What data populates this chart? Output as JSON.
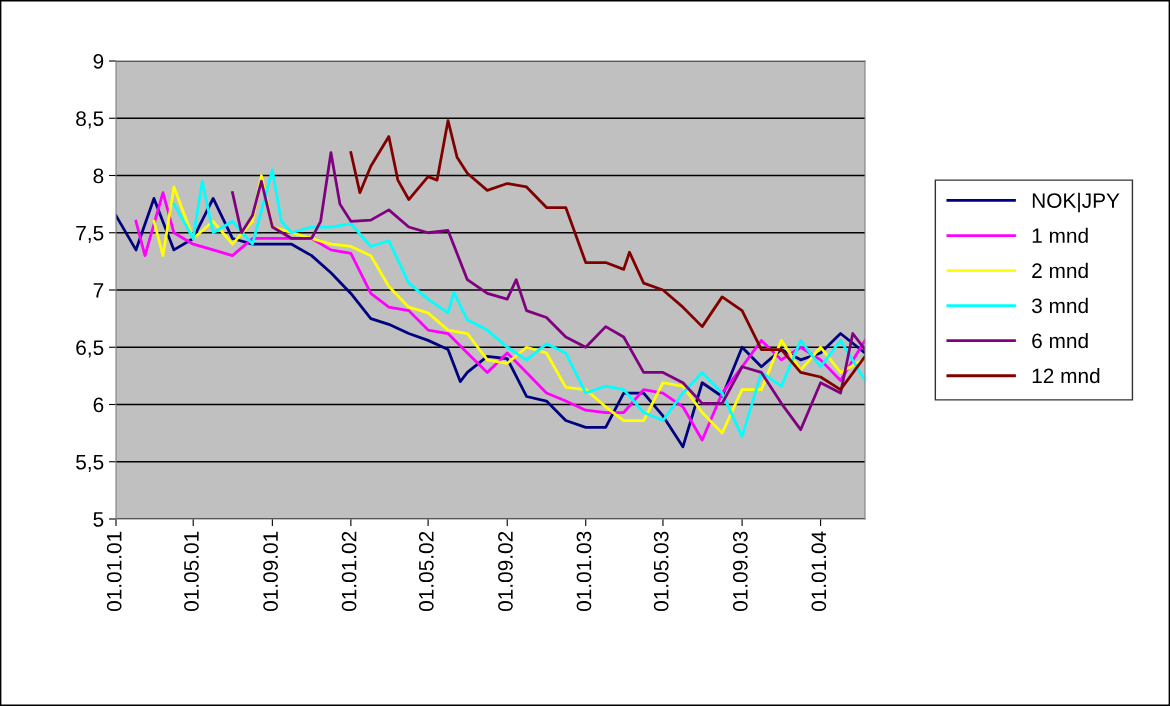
{
  "chart_data": {
    "type": "line",
    "xlim": [
      "2001-01-01",
      "2004-03-10"
    ],
    "xticks": [
      {
        "value": "2001-01-01",
        "label": "01.01.01"
      },
      {
        "value": "2001-05-01",
        "label": "01.05.01"
      },
      {
        "value": "2001-09-01",
        "label": "01.09.01"
      },
      {
        "value": "2002-01-01",
        "label": "01.01.02"
      },
      {
        "value": "2002-05-01",
        "label": "01.05.02"
      },
      {
        "value": "2002-09-01",
        "label": "01.09.02"
      },
      {
        "value": "2003-01-01",
        "label": "01.01.03"
      },
      {
        "value": "2003-05-01",
        "label": "01.05.03"
      },
      {
        "value": "2003-09-01",
        "label": "01.09.03"
      },
      {
        "value": "2004-01-01",
        "label": "01.01.04"
      }
    ],
    "ylim": [
      5,
      9
    ],
    "yticks": [
      {
        "value": 5,
        "label": "5"
      },
      {
        "value": 5.5,
        "label": "5,5"
      },
      {
        "value": 6,
        "label": "6"
      },
      {
        "value": 6.5,
        "label": "6,5"
      },
      {
        "value": 7,
        "label": "7"
      },
      {
        "value": 7.5,
        "label": "7,5"
      },
      {
        "value": 8,
        "label": "8"
      },
      {
        "value": 8.5,
        "label": "8,5"
      },
      {
        "value": 9,
        "label": "9"
      }
    ],
    "grid": "y",
    "legend": "right",
    "line_style": "solid",
    "marker": "none",
    "series": [
      {
        "name": "NOK|JPY",
        "color": "#000080",
        "x": [
          "2001-01-01",
          "2001-02-01",
          "2001-03-01",
          "2001-04-01",
          "2001-05-01",
          "2001-06-01",
          "2001-07-01",
          "2001-08-01",
          "2001-09-01",
          "2001-10-01",
          "2001-11-01",
          "2001-12-01",
          "2002-01-01",
          "2002-02-01",
          "2002-03-01",
          "2002-04-01",
          "2002-05-01",
          "2002-06-01",
          "2002-06-20",
          "2002-07-01",
          "2002-08-01",
          "2002-09-01",
          "2002-10-01",
          "2002-11-01",
          "2002-12-01",
          "2003-01-01",
          "2003-02-01",
          "2003-03-01",
          "2003-04-01",
          "2003-05-01",
          "2003-06-01",
          "2003-07-01",
          "2003-08-01",
          "2003-09-01",
          "2003-10-01",
          "2003-11-01",
          "2003-12-01",
          "2004-01-01",
          "2004-02-01",
          "2004-03-10"
        ],
        "values": [
          7.65,
          7.35,
          7.8,
          7.35,
          7.45,
          7.8,
          7.45,
          7.4,
          7.4,
          7.4,
          7.3,
          7.15,
          6.97,
          6.75,
          6.7,
          6.62,
          6.56,
          6.48,
          6.2,
          6.28,
          6.42,
          6.4,
          6.07,
          6.03,
          5.86,
          5.8,
          5.8,
          6.1,
          6.1,
          5.9,
          5.63,
          6.19,
          6.07,
          6.5,
          6.33,
          6.48,
          6.39,
          6.45,
          6.62,
          6.45
        ]
      },
      {
        "name": "1 mnd",
        "color": "#ff00ff",
        "x": [
          "2001-02-01",
          "2001-02-15",
          "2001-03-15",
          "2001-04-01",
          "2001-05-01",
          "2001-06-01",
          "2001-07-01",
          "2001-08-01",
          "2001-09-01",
          "2001-10-01",
          "2001-11-01",
          "2001-12-01",
          "2002-01-01",
          "2002-02-01",
          "2002-03-01",
          "2002-04-01",
          "2002-05-01",
          "2002-06-01",
          "2002-07-01",
          "2002-08-01",
          "2002-09-01",
          "2002-10-01",
          "2002-11-01",
          "2002-12-01",
          "2003-01-01",
          "2003-02-01",
          "2003-03-01",
          "2003-04-01",
          "2003-05-01",
          "2003-06-01",
          "2003-07-01",
          "2003-08-01",
          "2003-09-01",
          "2003-10-01",
          "2003-11-01",
          "2003-12-01",
          "2004-01-01",
          "2004-02-01",
          "2004-03-10"
        ],
        "values": [
          7.6,
          7.3,
          7.85,
          7.5,
          7.4,
          7.35,
          7.3,
          7.45,
          7.45,
          7.45,
          7.45,
          7.35,
          7.32,
          6.97,
          6.85,
          6.82,
          6.65,
          6.62,
          6.45,
          6.28,
          6.45,
          6.28,
          6.1,
          6.03,
          5.95,
          5.93,
          5.93,
          6.13,
          6.1,
          5.98,
          5.69,
          6.1,
          6.33,
          6.56,
          6.39,
          6.5,
          6.39,
          6.21,
          6.56
        ]
      },
      {
        "name": "2 mnd",
        "color": "#ffff00",
        "x": [
          "2001-03-01",
          "2001-03-15",
          "2001-04-01",
          "2001-05-01",
          "2001-06-01",
          "2001-07-01",
          "2001-08-01",
          "2001-08-15",
          "2001-09-01",
          "2001-10-01",
          "2001-11-01",
          "2001-12-01",
          "2002-01-01",
          "2002-02-01",
          "2002-03-01",
          "2002-04-01",
          "2002-05-01",
          "2002-06-01",
          "2002-07-01",
          "2002-08-01",
          "2002-09-01",
          "2002-10-01",
          "2002-11-01",
          "2002-12-01",
          "2003-01-01",
          "2003-02-01",
          "2003-03-01",
          "2003-04-01",
          "2003-05-01",
          "2003-06-01",
          "2003-07-01",
          "2003-08-01",
          "2003-09-01",
          "2003-10-01",
          "2003-11-01",
          "2003-12-01",
          "2004-01-01",
          "2004-02-01",
          "2004-03-10"
        ],
        "values": [
          7.6,
          7.3,
          7.9,
          7.45,
          7.6,
          7.4,
          7.6,
          8.0,
          7.55,
          7.5,
          7.45,
          7.4,
          7.38,
          7.3,
          7.03,
          6.85,
          6.8,
          6.65,
          6.62,
          6.39,
          6.36,
          6.5,
          6.45,
          6.15,
          6.13,
          5.98,
          5.86,
          5.86,
          6.19,
          6.16,
          5.93,
          5.75,
          6.13,
          6.13,
          6.56,
          6.3,
          6.5,
          6.28,
          6.4
        ]
      },
      {
        "name": "3 mnd",
        "color": "#00ffff",
        "x": [
          "2001-04-01",
          "2001-05-01",
          "2001-05-15",
          "2001-06-01",
          "2001-07-01",
          "2001-08-01",
          "2001-09-01",
          "2001-09-15",
          "2001-10-01",
          "2001-11-01",
          "2001-12-01",
          "2002-01-01",
          "2002-02-01",
          "2002-03-01",
          "2002-04-01",
          "2002-05-01",
          "2002-06-01",
          "2002-06-10",
          "2002-07-01",
          "2002-08-01",
          "2002-09-01",
          "2002-10-01",
          "2002-11-01",
          "2002-12-01",
          "2003-01-01",
          "2003-02-01",
          "2003-03-01",
          "2003-04-01",
          "2003-05-01",
          "2003-06-01",
          "2003-07-01",
          "2003-08-01",
          "2003-09-01",
          "2003-10-01",
          "2003-11-01",
          "2003-12-01",
          "2004-01-01",
          "2004-02-01",
          "2004-03-10"
        ],
        "values": [
          7.75,
          7.45,
          7.95,
          7.5,
          7.6,
          7.4,
          8.05,
          7.6,
          7.5,
          7.55,
          7.55,
          7.58,
          7.38,
          7.43,
          7.06,
          6.92,
          6.8,
          6.98,
          6.74,
          6.65,
          6.5,
          6.39,
          6.53,
          6.45,
          6.1,
          6.16,
          6.13,
          5.93,
          5.86,
          6.1,
          6.28,
          6.1,
          5.72,
          6.28,
          6.16,
          6.56,
          6.33,
          6.56,
          6.21
        ]
      },
      {
        "name": "6 mnd",
        "color": "#800080",
        "x": [
          "2001-07-01",
          "2001-07-15",
          "2001-08-01",
          "2001-08-15",
          "2001-09-01",
          "2001-10-01",
          "2001-11-01",
          "2001-11-15",
          "2001-12-01",
          "2001-12-15",
          "2002-01-01",
          "2002-02-01",
          "2002-03-01",
          "2002-04-01",
          "2002-05-01",
          "2002-06-01",
          "2002-07-01",
          "2002-08-01",
          "2002-09-01",
          "2002-09-15",
          "2002-10-01",
          "2002-11-01",
          "2002-12-01",
          "2003-01-01",
          "2003-02-01",
          "2003-03-01",
          "2003-04-01",
          "2003-05-01",
          "2003-06-01",
          "2003-07-01",
          "2003-08-01",
          "2003-09-01",
          "2003-10-01",
          "2003-11-01",
          "2003-12-01",
          "2004-01-01",
          "2004-02-01",
          "2004-02-20",
          "2004-03-10"
        ],
        "values": [
          7.85,
          7.5,
          7.65,
          7.95,
          7.55,
          7.45,
          7.45,
          7.6,
          8.2,
          7.75,
          7.6,
          7.61,
          7.7,
          7.55,
          7.5,
          7.52,
          7.09,
          6.97,
          6.92,
          7.09,
          6.82,
          6.76,
          6.59,
          6.5,
          6.68,
          6.59,
          6.28,
          6.28,
          6.19,
          6.01,
          6.01,
          6.33,
          6.28,
          6.01,
          5.78,
          6.19,
          6.1,
          6.62,
          6.48
        ]
      },
      {
        "name": "12 mnd",
        "color": "#800000",
        "x": [
          "2002-01-01",
          "2002-01-15",
          "2002-02-01",
          "2002-03-01",
          "2002-03-15",
          "2002-04-01",
          "2002-05-01",
          "2002-05-15",
          "2002-06-01",
          "2002-06-15",
          "2002-07-01",
          "2002-08-01",
          "2002-09-01",
          "2002-10-01",
          "2002-11-01",
          "2002-12-01",
          "2003-01-01",
          "2003-02-01",
          "2003-03-01",
          "2003-03-10",
          "2003-04-01",
          "2003-05-01",
          "2003-06-01",
          "2003-07-01",
          "2003-08-01",
          "2003-09-01",
          "2003-10-01",
          "2003-11-01",
          "2003-12-01",
          "2004-01-01",
          "2004-02-01",
          "2004-03-10"
        ],
        "values": [
          8.2,
          7.85,
          8.08,
          8.34,
          7.96,
          7.79,
          7.99,
          7.96,
          8.48,
          8.16,
          8.02,
          7.87,
          7.93,
          7.9,
          7.72,
          7.72,
          7.24,
          7.24,
          7.18,
          7.33,
          7.06,
          7.0,
          6.85,
          6.68,
          6.94,
          6.82,
          6.48,
          6.48,
          6.28,
          6.24,
          6.13,
          6.42
        ]
      }
    ]
  }
}
